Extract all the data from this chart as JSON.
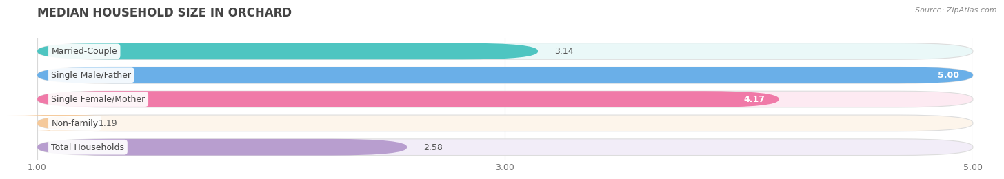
{
  "title": "MEDIAN HOUSEHOLD SIZE IN ORCHARD",
  "source": "Source: ZipAtlas.com",
  "categories": [
    "Married-Couple",
    "Single Male/Father",
    "Single Female/Mother",
    "Non-family",
    "Total Households"
  ],
  "values": [
    3.14,
    5.0,
    4.17,
    1.19,
    2.58
  ],
  "colors": [
    "#4ec5c1",
    "#6aafe8",
    "#f07aa8",
    "#f5c99a",
    "#b89ecf"
  ],
  "bg_colors": [
    "#eaf8f8",
    "#eaf3fc",
    "#fdeaf2",
    "#fdf5eb",
    "#f2edf8"
  ],
  "xlim_min": 1.0,
  "xlim_max": 5.0,
  "xticks": [
    1.0,
    3.0,
    5.0
  ],
  "value_labels": [
    "3.14",
    "5.00",
    "4.17",
    "1.19",
    "2.58"
  ],
  "label_inside": [
    false,
    true,
    true,
    false,
    false
  ],
  "background_color": "#ffffff",
  "grid_color": "#d8d8d8",
  "title_color": "#444444",
  "source_color": "#888888",
  "label_text_color": "#444444",
  "value_outside_color": "#555555",
  "bar_height": 0.68,
  "title_fontsize": 12,
  "label_fontsize": 9,
  "value_fontsize": 9
}
